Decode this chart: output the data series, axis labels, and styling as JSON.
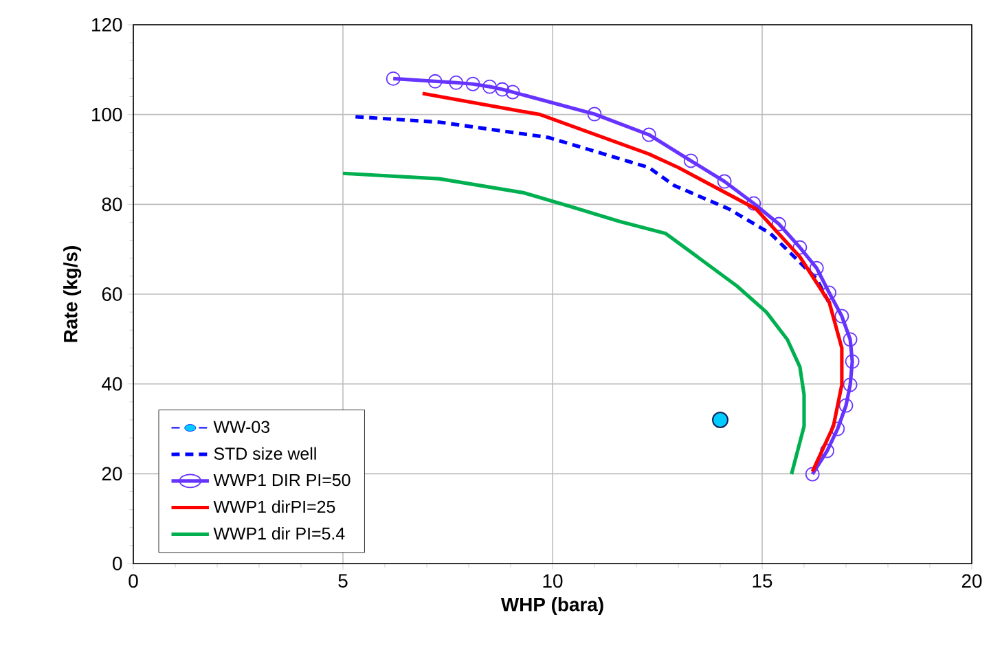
{
  "chart_data": {
    "type": "line",
    "xlabel": "WHP (bara)",
    "ylabel": "Rate (kg/s)",
    "xlim": [
      0,
      20
    ],
    "xticks": [
      0,
      5,
      10,
      15,
      20
    ],
    "ylim": [
      0,
      120
    ],
    "yticks": [
      0,
      20,
      40,
      60,
      80,
      100,
      120
    ],
    "grid": true,
    "legend": "bottom left",
    "series": [
      {
        "name": "WW-03",
        "type": "scatter",
        "color": "#00ccff",
        "marker": "circle",
        "line_style": "dashed",
        "x": [
          14
        ],
        "values": [
          32
        ]
      },
      {
        "name": "STD size well",
        "color": "#0000ff",
        "marker": "none",
        "line_style": "dashed",
        "x": [
          5.3,
          7.3,
          9.9,
          12.3,
          12.9,
          14.2,
          15.2,
          16.3,
          16.6
        ],
        "values": [
          99.5,
          98.3,
          94.9,
          88.2,
          84.2,
          79,
          73.5,
          63.4,
          58
        ]
      },
      {
        "name": "WWP1 DIR PI=50",
        "color": "#6633ff",
        "marker": "circle",
        "line_style": "solid",
        "x": [
          6.2,
          7.2,
          7.7,
          8.1,
          8.5,
          8.8,
          9.05,
          11.0,
          12.3,
          13.3,
          14.1,
          14.8,
          15.4,
          15.9,
          16.3,
          16.6,
          16.9,
          17.1,
          17.15,
          17.1,
          17.0,
          16.8,
          16.55,
          16.2
        ],
        "values": [
          108,
          107.4,
          107.1,
          106.8,
          106.2,
          105.6,
          105,
          100.1,
          95.5,
          89.7,
          85.1,
          80.2,
          75.6,
          70.4,
          65.8,
          60.3,
          55.1,
          49.9,
          45,
          39.8,
          35.2,
          30,
          25.1,
          19.9
        ]
      },
      {
        "name": "WWP1 dirPI=25",
        "color": "#ff0000",
        "marker": "none",
        "line_style": "solid",
        "x": [
          6.9,
          9.7,
          12.3,
          13.0,
          14.85,
          15.9,
          16.6,
          16.9,
          16.9,
          16.7,
          16.2
        ],
        "values": [
          104.7,
          100,
          91.2,
          88.2,
          79,
          68.3,
          58.2,
          48,
          39.8,
          30.6,
          20.5
        ]
      },
      {
        "name": "WWP1 dir PI=5.4",
        "color": "#00b050",
        "marker": "none",
        "line_style": "solid",
        "x": [
          5.0,
          7.3,
          9.3,
          10.4,
          11.6,
          12.7,
          13.5,
          14.4,
          15.1,
          15.6,
          15.9,
          16.0,
          16.0,
          15.7
        ],
        "values": [
          86.9,
          85.7,
          82.6,
          79.6,
          76.2,
          73.5,
          68,
          61.8,
          56,
          49.9,
          43.8,
          37.6,
          30.6,
          19.9
        ]
      }
    ]
  }
}
